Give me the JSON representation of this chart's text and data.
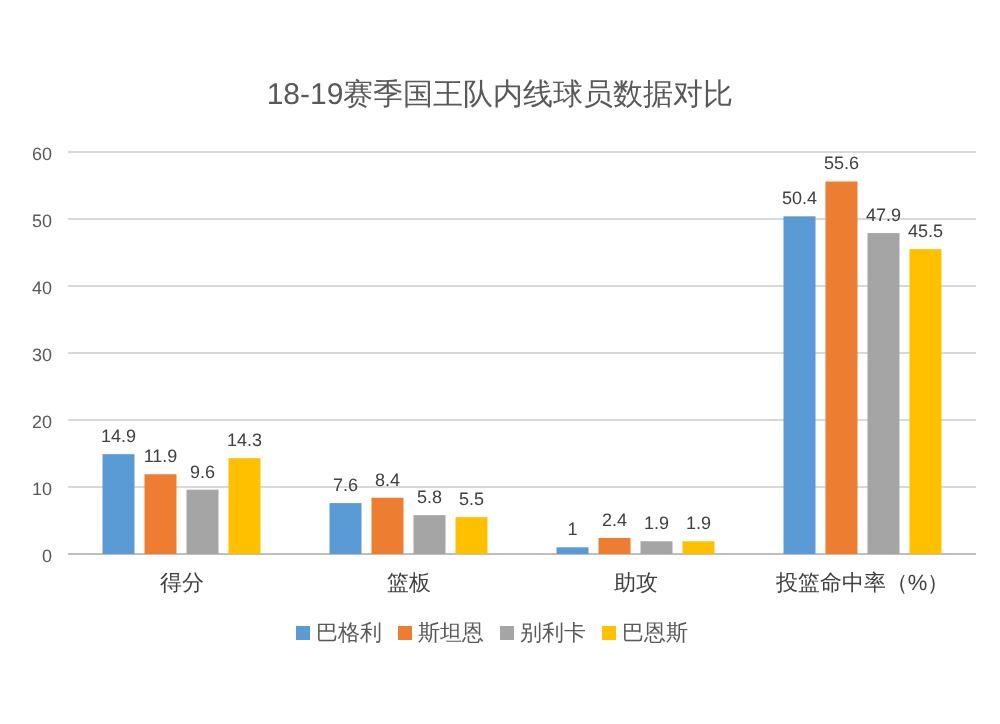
{
  "chart_data": {
    "type": "bar",
    "title": "18-19赛季国王队内线球员数据对比",
    "categories": [
      "得分",
      "篮板",
      "助攻",
      "投篮命中率（%）"
    ],
    "series": [
      {
        "name": "巴格利",
        "color": "#5b9bd5",
        "values": [
          14.9,
          7.6,
          1,
          50.4
        ]
      },
      {
        "name": "斯坦恩",
        "color": "#ed7d31",
        "values": [
          11.9,
          8.4,
          2.4,
          55.6
        ]
      },
      {
        "name": "别利卡",
        "color": "#a5a5a5",
        "values": [
          9.6,
          5.8,
          1.9,
          47.9
        ]
      },
      {
        "name": "巴恩斯",
        "color": "#ffc000",
        "values": [
          14.3,
          5.5,
          1.9,
          45.5
        ]
      }
    ],
    "ylim": [
      0,
      60
    ],
    "yticks": [
      0,
      10,
      20,
      30,
      40,
      50,
      60
    ],
    "grid": "y",
    "legend": "bottom",
    "data_labels": true
  }
}
